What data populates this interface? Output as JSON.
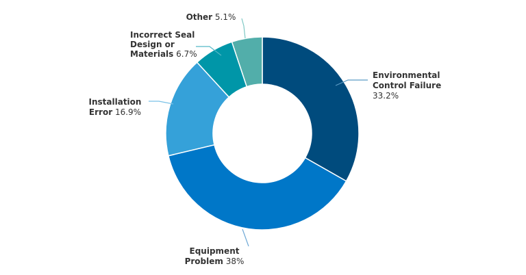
{
  "chart_data": {
    "type": "pie",
    "donut": true,
    "slices": [
      {
        "name_lines": [
          "Environmental",
          "Control Failure"
        ],
        "name": "Environmental Control Failure",
        "value": 33.2,
        "value_label": "33.2%",
        "color": "#004b7d",
        "line_color": "#5b9bc4"
      },
      {
        "name_lines": [
          "Equipment",
          "Problem"
        ],
        "name": "Equipment Problem",
        "value": 38,
        "value_label": "38%",
        "color": "#0077c8",
        "line_color": "#6fa9d6"
      },
      {
        "name_lines": [
          "Installation",
          "Error"
        ],
        "name": "Installation Error",
        "value": 16.9,
        "value_label": "16.9%",
        "color": "#35a1d9",
        "line_color": "#79c1e6"
      },
      {
        "name_lines": [
          "Incorrect Seal",
          "Design or",
          "Materials"
        ],
        "name": "Incorrect Seal Design or Materials",
        "value": 6.7,
        "value_label": "6.7%",
        "color": "#0096a8",
        "line_color": "#55b9c6"
      },
      {
        "name_lines": [
          "Other"
        ],
        "name": "Other",
        "value": 5.1,
        "value_label": "5.1%",
        "color": "#52aeaa",
        "line_color": "#7ec8c4"
      }
    ]
  }
}
